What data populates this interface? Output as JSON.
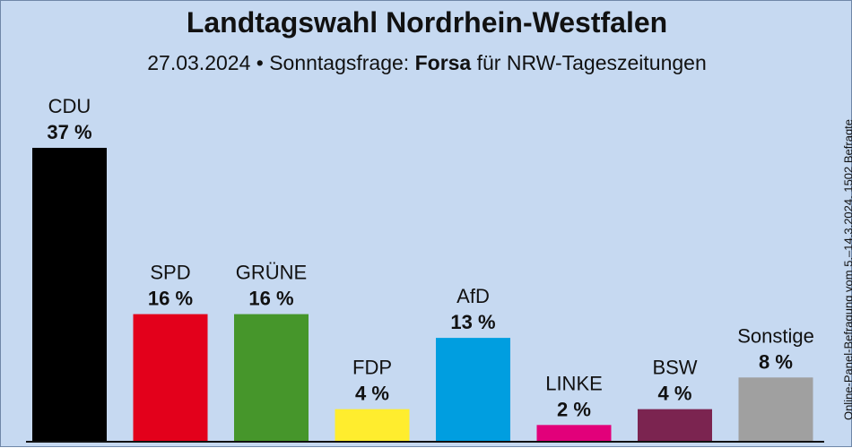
{
  "chart_data": {
    "type": "bar",
    "title": "Landtagswahl Nordrhein-Westfalen",
    "subtitle_prefix": "27.03.2024 • Sonntagsfrage: ",
    "subtitle_institute": "Forsa",
    "subtitle_suffix": " für NRW-Tageszeitungen",
    "side_note": "Online-Panel-Befragung vom 5.–14.3.2024, 1502 Befragte",
    "categories": [
      "CDU",
      "SPD",
      "GRÜNE",
      "FDP",
      "AfD",
      "LINKE",
      "BSW",
      "Sonstige"
    ],
    "values": [
      37,
      16,
      16,
      4,
      13,
      2,
      4,
      8
    ],
    "value_labels": [
      "37 %",
      "16 %",
      "16 %",
      "4 %",
      "13 %",
      "2 %",
      "4 %",
      "8 %"
    ],
    "colors": [
      "#000000",
      "#e3001b",
      "#46962b",
      "#ffed2e",
      "#009ee0",
      "#e2007a",
      "#7b2450",
      "#a0a0a0"
    ],
    "ylim": [
      0,
      40
    ],
    "xlabel": "",
    "ylabel": ""
  }
}
